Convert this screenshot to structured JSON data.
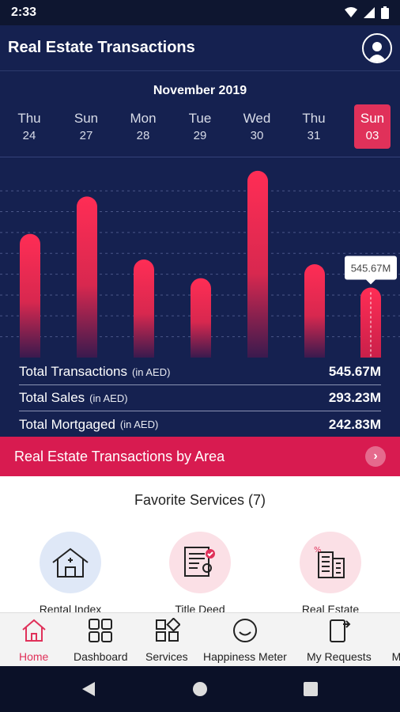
{
  "status": {
    "time": "2:33"
  },
  "app": {
    "title": "Real Estate Transactions"
  },
  "calendar": {
    "month": "November 2019",
    "days": [
      {
        "name": "Thu",
        "num": "24"
      },
      {
        "name": "Sun",
        "num": "27"
      },
      {
        "name": "Mon",
        "num": "28"
      },
      {
        "name": "Tue",
        "num": "29"
      },
      {
        "name": "Wed",
        "num": "30"
      },
      {
        "name": "Thu",
        "num": "31"
      },
      {
        "name": "Sun",
        "num": "03"
      }
    ],
    "selected_index": 6
  },
  "chart_data": {
    "type": "bar",
    "categories": [
      "24",
      "27",
      "28",
      "29",
      "30",
      "31",
      "03"
    ],
    "values": [
      530,
      690,
      420,
      340,
      800,
      400,
      300
    ],
    "ylim": [
      0,
      820
    ],
    "grid": true,
    "highlight_index": 6,
    "tooltip": "545.67M",
    "colors": {
      "bar_top": "#ff2d55",
      "bar_bottom": "#3a1a4e",
      "grid": "#4a5688"
    }
  },
  "totals": [
    {
      "label": "Total Transactions",
      "unit": "(in AED)",
      "value": "545.67M"
    },
    {
      "label": "Total Sales",
      "unit": "(in AED)",
      "value": "293.23M"
    },
    {
      "label": "Total Mortgaged",
      "unit": "(in AED)",
      "value": "242.83M"
    }
  ],
  "area_banner": {
    "label": "Real Estate Transactions by Area",
    "icon": "chevron-right-icon"
  },
  "favorites": {
    "title": "Favorite Services (7)",
    "items": [
      {
        "label": "Rental Index",
        "icon": "house-icon",
        "bg": "#dfe8f7"
      },
      {
        "label": "Title Deed",
        "icon": "title-deed-icon",
        "bg": "#fbe0e6"
      },
      {
        "label": "Real Estate",
        "icon": "building-icon",
        "bg": "#fbe0e6"
      }
    ]
  },
  "nav": [
    {
      "label": "Home",
      "icon": "home-icon",
      "active": true
    },
    {
      "label": "Dashboard",
      "icon": "dashboard-icon",
      "active": false
    },
    {
      "label": "Services",
      "icon": "services-icon",
      "active": false
    },
    {
      "label": "Happiness Meter",
      "icon": "smiley-icon",
      "active": false
    },
    {
      "label": "My Requests",
      "icon": "requests-icon",
      "active": false
    },
    {
      "label": "My",
      "icon": "",
      "active": false
    }
  ],
  "colors": {
    "navy": "#152150",
    "accent": "#e0315a",
    "banner": "#d81b50"
  }
}
